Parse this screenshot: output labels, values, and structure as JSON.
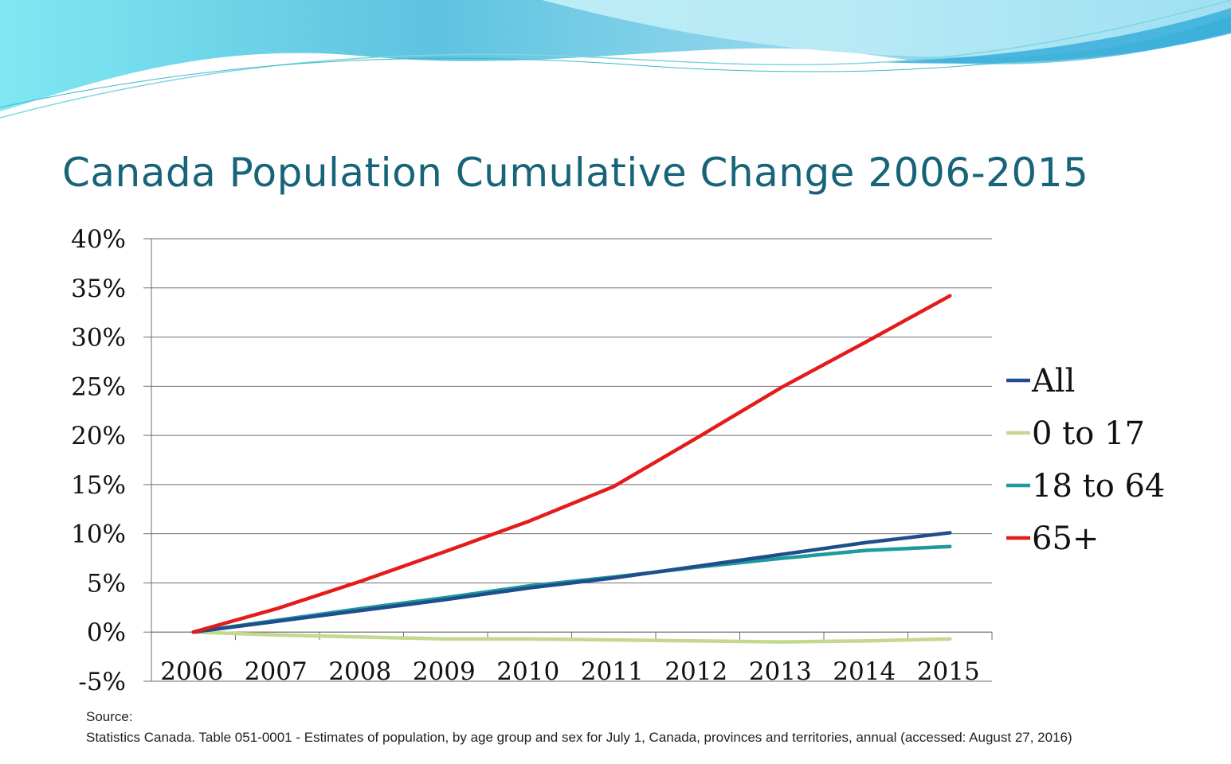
{
  "slide": {
    "title": "Canada Population Cumulative Change 2006-2015",
    "source_heading": "Source:",
    "source_text": "Statistics Canada. Table 051-0001 - Estimates of population, by age group and sex for July 1, Canada, provinces and territories, annual (accessed: August 27, 2016)"
  },
  "colors": {
    "title": "#17647a",
    "decor_light": "#7fe3f0",
    "decor_dark": "#2aaed6"
  },
  "chart_data": {
    "type": "line",
    "title": "Canada Population Cumulative Change 2006-2015",
    "xlabel": "",
    "ylabel": "",
    "categories": [
      "2006",
      "2007",
      "2008",
      "2009",
      "2010",
      "2011",
      "2012",
      "2013",
      "2014",
      "2015"
    ],
    "ylim": [
      -5,
      40
    ],
    "yticks": [
      40,
      35,
      30,
      25,
      20,
      15,
      10,
      5,
      0,
      -5
    ],
    "ytick_labels": [
      "40%",
      "35%",
      "30%",
      "25%",
      "20%",
      "15%",
      "10%",
      "5%",
      "0%",
      "-5%"
    ],
    "grid": true,
    "legend_position": "right",
    "series": [
      {
        "name": "All",
        "color": "#1f4e8c",
        "values": [
          0,
          1.1,
          2.2,
          3.3,
          4.5,
          5.5,
          6.7,
          7.9,
          9.1,
          10.1
        ]
      },
      {
        "name": "0 to 17",
        "color": "#c4d98f",
        "values": [
          0,
          -0.3,
          -0.5,
          -0.7,
          -0.7,
          -0.8,
          -0.9,
          -1.0,
          -0.9,
          -0.7
        ]
      },
      {
        "name": "18 to 64",
        "color": "#1d9a9e",
        "values": [
          0,
          1.2,
          2.4,
          3.5,
          4.7,
          5.6,
          6.6,
          7.5,
          8.3,
          8.7
        ]
      },
      {
        "name": "65+",
        "color": "#e31b1b",
        "values": [
          0,
          2.4,
          5.2,
          8.2,
          11.3,
          14.8,
          19.8,
          24.9,
          29.5,
          34.2
        ]
      }
    ]
  }
}
